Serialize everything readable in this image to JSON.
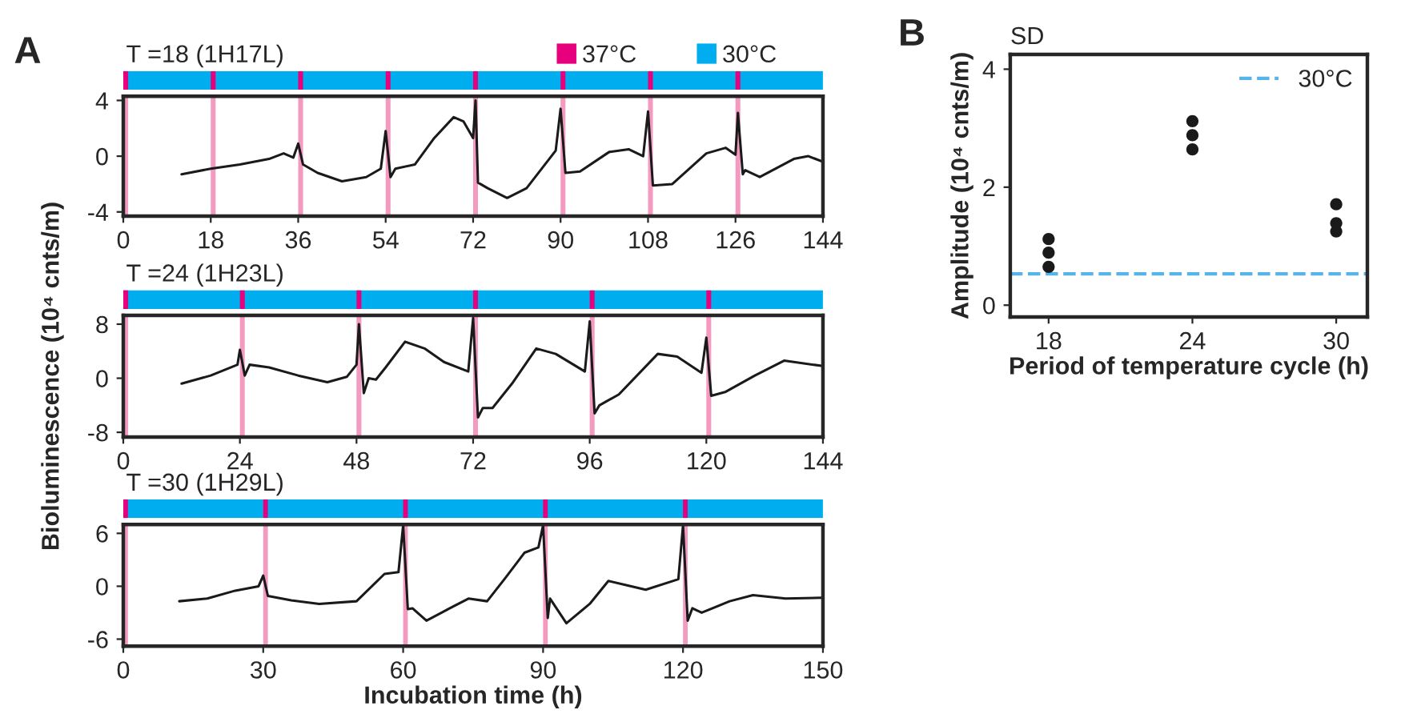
{
  "chart_data": [
    {
      "type": "line",
      "title": "T =18 (1H17L)",
      "annotations": [
        "A",
        "37°C",
        "30°C"
      ],
      "xlim": [
        0,
        144
      ],
      "xticks": [
        0,
        18,
        36,
        54,
        72,
        90,
        108,
        126,
        144
      ],
      "ylim": [
        -4.3,
        4.3
      ],
      "yticks": [
        -4,
        0,
        4
      ],
      "grid": false,
      "legend": false,
      "bands": [
        {
          "axis": "x",
          "from": 0,
          "to": 1,
          "color": "#f49ac1"
        },
        {
          "axis": "x",
          "from": 18,
          "to": 19,
          "color": "#f49ac1"
        },
        {
          "axis": "x",
          "from": 36,
          "to": 37,
          "color": "#f49ac1"
        },
        {
          "axis": "x",
          "from": 54,
          "to": 55,
          "color": "#f49ac1"
        },
        {
          "axis": "x",
          "from": 72,
          "to": 73,
          "color": "#f49ac1"
        },
        {
          "axis": "x",
          "from": 90,
          "to": 91,
          "color": "#f49ac1"
        },
        {
          "axis": "x",
          "from": 108,
          "to": 109,
          "color": "#f49ac1"
        },
        {
          "axis": "x",
          "from": 126,
          "to": 127,
          "color": "#f49ac1"
        }
      ],
      "series": [
        {
          "color": "#1a1a1a",
          "x": [
            12,
            18,
            24,
            30,
            33,
            35,
            36,
            37,
            40,
            45,
            50,
            53,
            54,
            55,
            56,
            60,
            64,
            68,
            70,
            72,
            72.5,
            73,
            75,
            79,
            83,
            89,
            90,
            91,
            94,
            100,
            104,
            107,
            108,
            109,
            113,
            120,
            124,
            126,
            126.5,
            127.5,
            128,
            131,
            138,
            141,
            144
          ],
          "values": [
            -1.3,
            -0.9,
            -0.6,
            -0.2,
            0.2,
            -0.1,
            0.9,
            -0.6,
            -1.2,
            -1.8,
            -1.5,
            -0.9,
            1.8,
            -1.5,
            -0.9,
            -0.6,
            1.3,
            2.8,
            2.5,
            1.3,
            4.0,
            -1.9,
            -2.3,
            -3.0,
            -2.3,
            0.4,
            3.4,
            -1.2,
            -1.1,
            0.3,
            0.5,
            0.0,
            3.2,
            -2.1,
            -2.0,
            0.2,
            0.6,
            0.1,
            3.1,
            -1.3,
            -1.0,
            -1.5,
            -0.2,
            0.0,
            -0.4
          ]
        }
      ]
    },
    {
      "type": "line",
      "title": "T =24 (1H23L)",
      "ylabel": "Bioluminescence (10⁴ cnts/m)",
      "xlim": [
        0,
        144
      ],
      "xticks": [
        0,
        24,
        48,
        72,
        96,
        120,
        144
      ],
      "ylim": [
        -8.7,
        9.3
      ],
      "yticks": [
        -8,
        0,
        8
      ],
      "grid": false,
      "legend": false,
      "bands": [
        {
          "axis": "x",
          "from": 0,
          "to": 1,
          "color": "#f49ac1"
        },
        {
          "axis": "x",
          "from": 24,
          "to": 25,
          "color": "#f49ac1"
        },
        {
          "axis": "x",
          "from": 48,
          "to": 49,
          "color": "#f49ac1"
        },
        {
          "axis": "x",
          "from": 72,
          "to": 73,
          "color": "#f49ac1"
        },
        {
          "axis": "x",
          "from": 96,
          "to": 97,
          "color": "#f49ac1"
        },
        {
          "axis": "x",
          "from": 120,
          "to": 121,
          "color": "#f49ac1"
        }
      ],
      "series": [
        {
          "color": "#1a1a1a",
          "x": [
            12,
            18,
            23.5,
            24,
            25,
            26,
            30,
            36,
            42,
            46,
            48,
            48.5,
            49.5,
            50.5,
            52,
            54,
            58,
            62,
            66,
            71,
            72,
            73,
            74,
            76,
            80,
            85,
            89,
            95,
            96,
            97,
            98,
            102,
            110,
            114,
            119,
            120,
            121,
            124,
            130,
            136,
            144
          ],
          "values": [
            -0.8,
            0.4,
            2.0,
            4.2,
            0.4,
            2.0,
            1.6,
            0.4,
            -0.6,
            0.2,
            2.0,
            8.0,
            -2.2,
            0.0,
            -0.2,
            1.6,
            5.4,
            4.4,
            2.4,
            1.0,
            8.9,
            -5.8,
            -4.4,
            -4.4,
            -0.8,
            4.4,
            3.6,
            1.0,
            8.4,
            -5.2,
            -4.0,
            -2.4,
            3.6,
            3.2,
            0.8,
            6.0,
            -2.6,
            -2.0,
            0.4,
            2.6,
            1.8
          ]
        }
      ]
    },
    {
      "type": "line",
      "title": "T =30 (1H29L)",
      "xlabel": "Incubation time (h)",
      "xlim": [
        0,
        150
      ],
      "xticks": [
        0,
        30,
        60,
        90,
        120,
        150
      ],
      "ylim": [
        -6.8,
        7.0
      ],
      "yticks": [
        -6,
        0,
        6
      ],
      "grid": false,
      "legend": false,
      "bands": [
        {
          "axis": "x",
          "from": 0,
          "to": 1,
          "color": "#f49ac1"
        },
        {
          "axis": "x",
          "from": 30,
          "to": 31,
          "color": "#f49ac1"
        },
        {
          "axis": "x",
          "from": 60,
          "to": 61,
          "color": "#f49ac1"
        },
        {
          "axis": "x",
          "from": 90,
          "to": 91,
          "color": "#f49ac1"
        },
        {
          "axis": "x",
          "from": 120,
          "to": 121,
          "color": "#f49ac1"
        }
      ],
      "series": [
        {
          "color": "#1a1a1a",
          "x": [
            12,
            18,
            24,
            29,
            30,
            31,
            36,
            42,
            50,
            56,
            59,
            60,
            61,
            62,
            65,
            70,
            74,
            78,
            82,
            86,
            89,
            90,
            91,
            91.5,
            95,
            100,
            104,
            108,
            112,
            119,
            120,
            121,
            122,
            124,
            130,
            135,
            142,
            150
          ],
          "values": [
            -1.7,
            -1.4,
            -0.5,
            0.0,
            1.2,
            -1.1,
            -1.6,
            -2.0,
            -1.7,
            1.4,
            1.6,
            6.9,
            -2.6,
            -2.5,
            -3.9,
            -2.5,
            -1.4,
            -1.7,
            1.0,
            3.8,
            4.4,
            6.9,
            -3.6,
            -1.4,
            -4.2,
            -2.0,
            0.6,
            0.1,
            -0.4,
            0.8,
            6.9,
            -3.9,
            -2.5,
            -3.0,
            -1.7,
            -1.0,
            -1.4,
            -1.3
          ]
        }
      ]
    },
    {
      "type": "scatter",
      "title": "SD",
      "annotations": [
        "B"
      ],
      "xlabel": "Period of temperature cycle (h)",
      "ylabel": "Amplitude (10⁴ cnts/m)",
      "xlim": [
        16.4,
        31.3
      ],
      "xticks": [
        18,
        24,
        30
      ],
      "ylim": [
        -0.2,
        4.25
      ],
      "yticks": [
        0,
        2,
        4
      ],
      "grid": false,
      "legend": "top right",
      "marker": "circle",
      "ref_lines": [
        {
          "axis": "y",
          "value": 0.53,
          "label": "30°C",
          "color": "#56b4e9",
          "line_style": "dashed"
        }
      ],
      "series": [
        {
          "color": "#1a1a1a",
          "x": [
            18,
            18,
            18,
            24,
            24,
            24,
            30,
            30,
            30
          ],
          "values": [
            1.12,
            0.89,
            0.65,
            3.12,
            2.88,
            2.64,
            1.71,
            1.39,
            1.25
          ]
        }
      ]
    }
  ]
}
